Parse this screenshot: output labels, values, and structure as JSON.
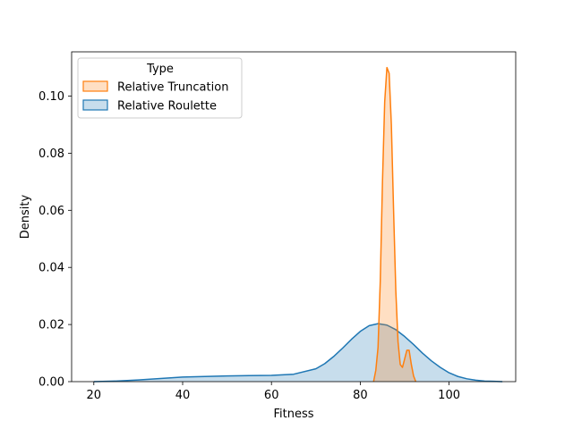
{
  "chart_data": {
    "type": "area",
    "title": "",
    "xlabel": "Fitness",
    "ylabel": "Density",
    "xlim": [
      15,
      115
    ],
    "ylim": [
      0,
      0.1155
    ],
    "xticks": [
      20,
      40,
      60,
      80,
      100
    ],
    "yticks": [
      0.0,
      0.02,
      0.04,
      0.06,
      0.08,
      0.1
    ],
    "xtick_labels": [
      "20",
      "40",
      "60",
      "80",
      "100"
    ],
    "ytick_labels": [
      "0.00",
      "0.02",
      "0.04",
      "0.06",
      "0.08",
      "0.10"
    ],
    "legend": {
      "title": "Type",
      "position": "top-left",
      "entries": [
        "Relative Truncation",
        "Relative Roulette"
      ]
    },
    "series": [
      {
        "name": "Relative Roulette",
        "color": "#1f77b4",
        "x": [
          20,
          25,
          30,
          35,
          40,
          45,
          50,
          55,
          60,
          65,
          70,
          72,
          74,
          76,
          78,
          80,
          82,
          84,
          86,
          88,
          90,
          92,
          94,
          96,
          98,
          100,
          102,
          104,
          106,
          108,
          110,
          112
        ],
        "y": [
          0.0,
          0.0002,
          0.0006,
          0.0011,
          0.0016,
          0.0018,
          0.002,
          0.0021,
          0.0022,
          0.0026,
          0.0045,
          0.0063,
          0.0088,
          0.0117,
          0.0148,
          0.0176,
          0.0196,
          0.0203,
          0.0198,
          0.0182,
          0.0158,
          0.013,
          0.01,
          0.0073,
          0.005,
          0.0031,
          0.0018,
          0.001,
          0.0005,
          0.0002,
          0.0001,
          0.0
        ]
      },
      {
        "name": "Relative Truncation",
        "color": "#ff7f0e",
        "x": [
          83,
          83.5,
          84,
          84.5,
          85,
          85.5,
          86,
          86.5,
          87,
          87.5,
          88,
          88.5,
          89,
          89.5,
          90,
          90.5,
          91,
          91.5,
          92,
          92.5
        ],
        "y": [
          0.0,
          0.004,
          0.012,
          0.035,
          0.07,
          0.098,
          0.11,
          0.108,
          0.09,
          0.06,
          0.032,
          0.014,
          0.006,
          0.005,
          0.008,
          0.011,
          0.011,
          0.006,
          0.002,
          0.0
        ]
      }
    ]
  }
}
